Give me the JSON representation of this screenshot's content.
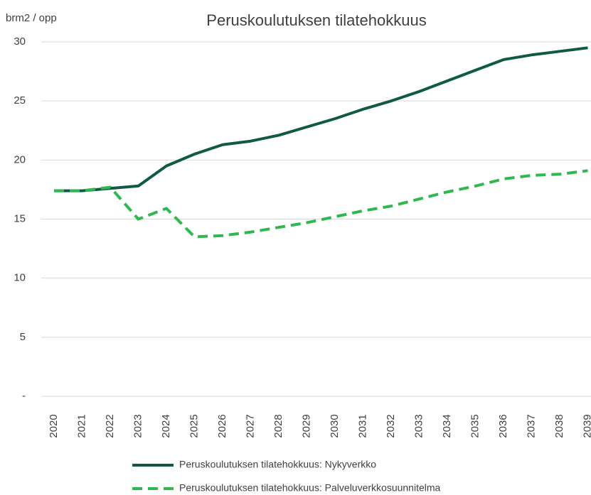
{
  "chart_data": {
    "type": "line",
    "title": "Peruskoulutuksen tilatehokkuus",
    "y_label": "brm2 / opp",
    "categories": [
      "2020",
      "2021",
      "2022",
      "2023",
      "2024",
      "2025",
      "2026",
      "2027",
      "2028",
      "2029",
      "2030",
      "2031",
      "2032",
      "2033",
      "2034",
      "2035",
      "2036",
      "2037",
      "2038",
      "2039"
    ],
    "series": [
      {
        "name": "Peruskoulutuksen tilatehokkuus: Nykyverkko",
        "color": "#0e5a47",
        "dash": false,
        "values": [
          17.4,
          17.4,
          17.6,
          17.8,
          19.5,
          20.5,
          21.3,
          21.6,
          22.1,
          22.8,
          23.5,
          24.3,
          25.0,
          25.8,
          26.7,
          27.6,
          28.5,
          28.9,
          29.2,
          29.5
        ]
      },
      {
        "name": "Peruskoulutuksen tilatehokkuus: Palveluverkkosuunnitelma",
        "color": "#2fb84f",
        "dash": true,
        "values": [
          17.4,
          17.4,
          17.7,
          15.0,
          15.9,
          13.5,
          13.6,
          13.9,
          14.3,
          14.7,
          15.2,
          15.7,
          16.1,
          16.7,
          17.3,
          17.8,
          18.4,
          18.7,
          18.8,
          19.1
        ]
      }
    ],
    "ylim": [
      0,
      30
    ],
    "yticks": [
      {
        "value": 0,
        "label": "-"
      },
      5,
      10,
      15,
      20,
      25,
      30
    ],
    "grid": true
  }
}
